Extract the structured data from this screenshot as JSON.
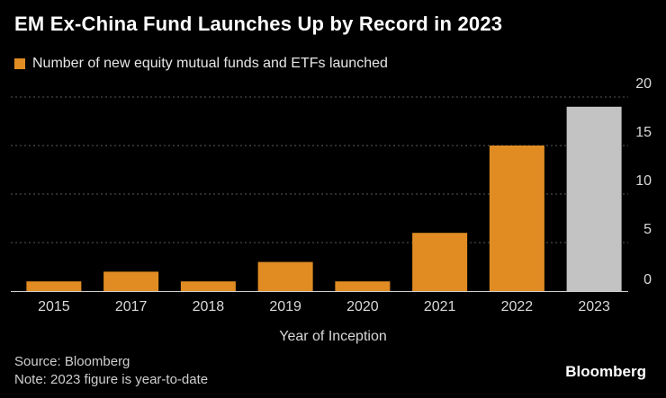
{
  "chart_data": {
    "type": "bar",
    "title": "EM Ex-China Fund Launches Up by Record in 2023",
    "legend": [
      "Number of new equity mutual funds and ETFs launched"
    ],
    "categories": [
      "2015",
      "2017",
      "2018",
      "2019",
      "2020",
      "2021",
      "2022",
      "2023"
    ],
    "values": [
      1,
      2,
      1,
      3,
      1,
      6,
      15,
      19
    ],
    "bar_colors": [
      "#e08c23",
      "#e08c23",
      "#e08c23",
      "#e08c23",
      "#e08c23",
      "#e08c23",
      "#e08c23",
      "#c3c3c3"
    ],
    "xlabel": "Year of Inception",
    "ylabel": "",
    "ylim": [
      0,
      20
    ],
    "yticks": [
      0,
      5,
      10,
      15,
      20
    ],
    "grid": true,
    "y_axis_side": "right"
  },
  "colors": {
    "background": "#000000",
    "accent": "#e08c23",
    "highlight": "#c3c3c3",
    "gridline": "#5a5a5a"
  },
  "footer": {
    "source": "Source: Bloomberg",
    "note": "Note: 2023 figure is year-to-date"
  },
  "brand": "Bloomberg"
}
